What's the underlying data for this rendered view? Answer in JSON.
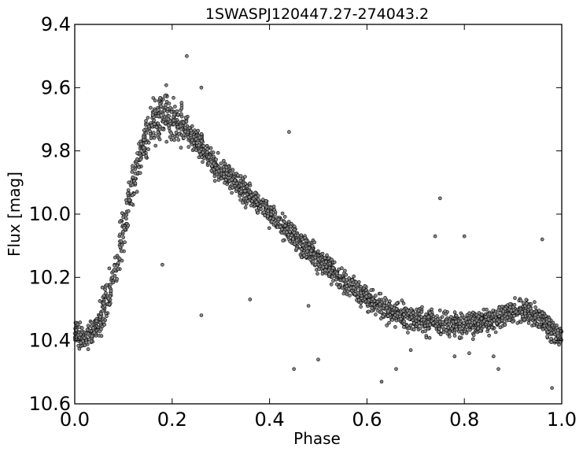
{
  "chart_data": {
    "type": "scatter",
    "title": "1SWASPJ120447.27-274043.2",
    "xlabel": "Phase",
    "ylabel": "Flux [mag]",
    "xlim": [
      0.0,
      1.0
    ],
    "ylim": [
      10.6,
      9.4
    ],
    "y_inverted": true,
    "grid": false,
    "xticks": [
      "0.0",
      "0.2",
      "0.4",
      "0.6",
      "0.8",
      "1.0"
    ],
    "yticks": [
      "9.4",
      "9.6",
      "9.8",
      "10.0",
      "10.2",
      "10.4",
      "10.6"
    ],
    "marker_fill": "#888888",
    "marker_edge": "#000000",
    "series": [
      {
        "points_note_free": true,
        "light_curve_template": [
          [
            0.0,
            10.38
          ],
          [
            0.02,
            10.39
          ],
          [
            0.04,
            10.37
          ],
          [
            0.06,
            10.3
          ],
          [
            0.08,
            10.2
          ],
          [
            0.1,
            10.05
          ],
          [
            0.12,
            9.9
          ],
          [
            0.14,
            9.78
          ],
          [
            0.16,
            9.7
          ],
          [
            0.18,
            9.68
          ],
          [
            0.2,
            9.69
          ],
          [
            0.22,
            9.72
          ],
          [
            0.25,
            9.77
          ],
          [
            0.28,
            9.83
          ],
          [
            0.3,
            9.86
          ],
          [
            0.35,
            9.93
          ],
          [
            0.4,
            10.0
          ],
          [
            0.45,
            10.07
          ],
          [
            0.5,
            10.14
          ],
          [
            0.55,
            10.21
          ],
          [
            0.6,
            10.27
          ],
          [
            0.65,
            10.31
          ],
          [
            0.7,
            10.33
          ],
          [
            0.75,
            10.35
          ],
          [
            0.8,
            10.35
          ],
          [
            0.85,
            10.34
          ],
          [
            0.9,
            10.31
          ],
          [
            0.93,
            10.31
          ],
          [
            0.96,
            10.34
          ],
          [
            1.0,
            10.39
          ]
        ],
        "outliers": [
          [
            0.18,
            10.16
          ],
          [
            0.23,
            9.5
          ],
          [
            0.26,
            9.6
          ],
          [
            0.26,
            10.32
          ],
          [
            0.36,
            10.27
          ],
          [
            0.44,
            9.74
          ],
          [
            0.45,
            10.49
          ],
          [
            0.48,
            10.29
          ],
          [
            0.5,
            10.46
          ],
          [
            0.63,
            10.53
          ],
          [
            0.66,
            10.49
          ],
          [
            0.69,
            10.43
          ],
          [
            0.72,
            10.37
          ],
          [
            0.74,
            10.07
          ],
          [
            0.75,
            9.95
          ],
          [
            0.78,
            10.45
          ],
          [
            0.79,
            10.39
          ],
          [
            0.8,
            10.07
          ],
          [
            0.81,
            10.44
          ],
          [
            0.86,
            10.45
          ],
          [
            0.87,
            10.49
          ],
          [
            0.96,
            10.08
          ],
          [
            0.98,
            10.55
          ]
        ]
      }
    ]
  }
}
